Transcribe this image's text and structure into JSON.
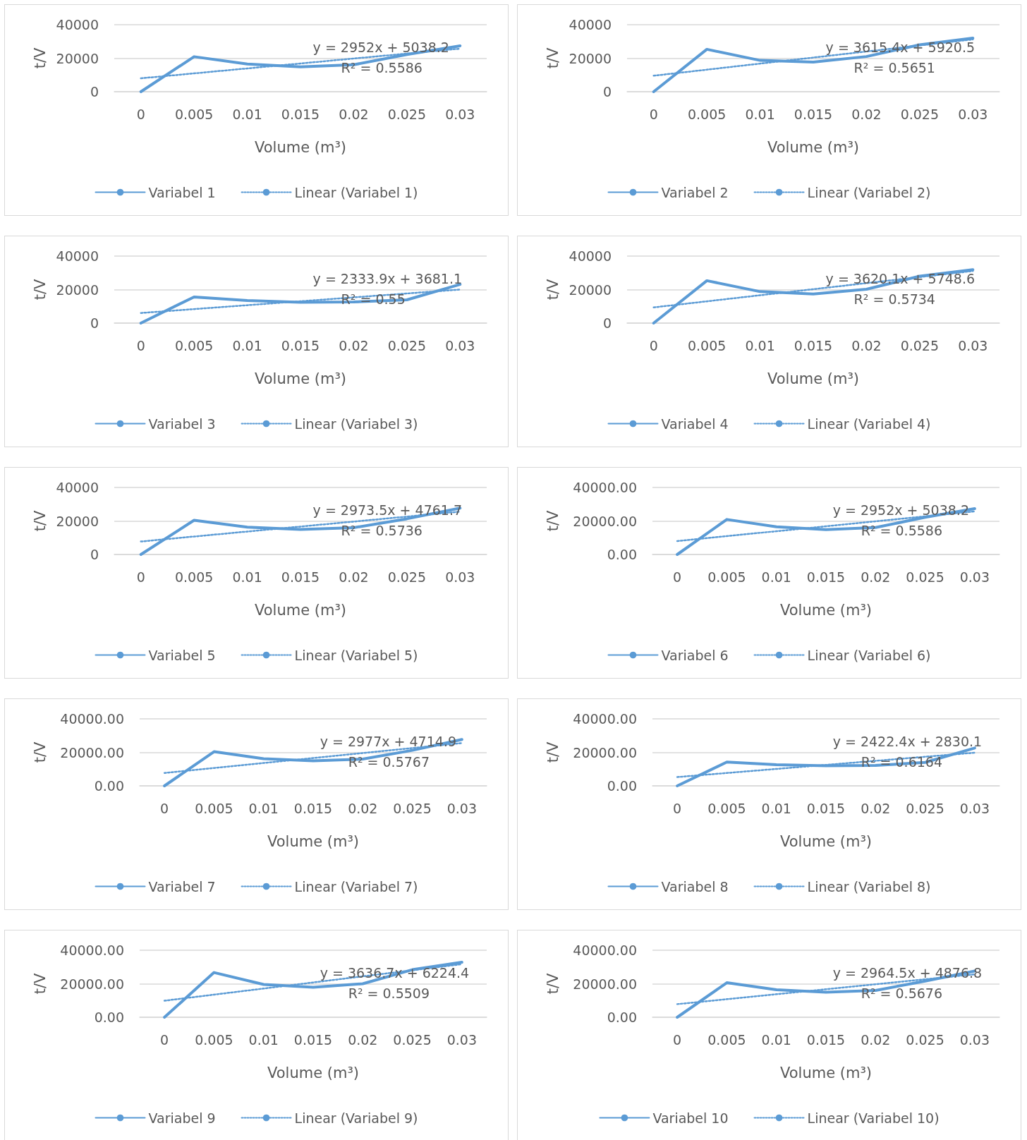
{
  "chart_data": [
    {
      "type": "line",
      "categories": [
        "0",
        "0.005",
        "0.01",
        "0.015",
        "0.02",
        "0.025",
        "0.03"
      ],
      "xlabel": "Volume (m³)",
      "ylabel": "t/V",
      "ylim": [
        0,
        40000
      ],
      "yticks": [
        0,
        20000,
        40000
      ],
      "grid": "y",
      "legend": "bottom",
      "marker": "none",
      "annotations": [
        "y = 2952x + 5038.2",
        "R² = 0.5586"
      ],
      "series": [
        {
          "name": "Variabel 1",
          "color": "#5b9bd5",
          "line_style": "solid",
          "values": [
            0,
            20900,
            16500,
            14800,
            16100,
            22200,
            27400
          ]
        },
        {
          "name": "Linear (Variabel 1)",
          "color": "#5b9bd5",
          "line_style": "dotted",
          "values": [
            7990,
            10940,
            13890,
            16850,
            19800,
            22750,
            25700
          ]
        }
      ]
    },
    {
      "type": "line",
      "categories": [
        "0",
        "0.005",
        "0.01",
        "0.015",
        "0.02",
        "0.025",
        "0.03"
      ],
      "xlabel": "Volume (m³)",
      "ylabel": "t/V",
      "ylim": [
        0,
        40000
      ],
      "yticks": [
        0,
        20000,
        40000
      ],
      "grid": "y",
      "legend": "bottom",
      "marker": "none",
      "annotations": [
        "y = 3615.4x + 5920.5",
        "R² = 0.5651"
      ],
      "series": [
        {
          "name": "Variabel 2",
          "color": "#5b9bd5",
          "line_style": "solid",
          "values": [
            0,
            25300,
            18700,
            17700,
            21000,
            28000,
            32000
          ]
        },
        {
          "name": "Linear (Variabel 2)",
          "color": "#5b9bd5",
          "line_style": "dotted",
          "values": [
            9540,
            13150,
            16770,
            20380,
            24000,
            27610,
            31230
          ]
        }
      ]
    },
    {
      "type": "line",
      "categories": [
        "0",
        "0.005",
        "0.01",
        "0.015",
        "0.02",
        "0.025",
        "0.03"
      ],
      "xlabel": "Volume (m³)",
      "ylabel": "t/V",
      "ylim": [
        0,
        40000
      ],
      "yticks": [
        0,
        20000,
        40000
      ],
      "grid": "y",
      "legend": "bottom",
      "marker": "none",
      "annotations": [
        "y = 2333.9x + 3681.1",
        "R² = 0.55"
      ],
      "series": [
        {
          "name": "Variabel 3",
          "color": "#5b9bd5",
          "line_style": "solid",
          "values": [
            0,
            15600,
            13500,
            12400,
            12600,
            13900,
            23100
          ]
        },
        {
          "name": "Linear (Variabel 3)",
          "color": "#5b9bd5",
          "line_style": "dotted",
          "values": [
            6020,
            8350,
            10680,
            13020,
            15350,
            17680,
            20020
          ]
        }
      ]
    },
    {
      "type": "line",
      "categories": [
        "0",
        "0.005",
        "0.01",
        "0.015",
        "0.02",
        "0.025",
        "0.03"
      ],
      "xlabel": "Volume (m³)",
      "ylabel": "t/V",
      "ylim": [
        0,
        40000
      ],
      "yticks": [
        0,
        20000,
        40000
      ],
      "grid": "y",
      "legend": "bottom",
      "marker": "none",
      "annotations": [
        "y = 3620.1x + 5748.6",
        "R² = 0.5734"
      ],
      "series": [
        {
          "name": "Variabel 4",
          "color": "#5b9bd5",
          "line_style": "solid",
          "values": [
            0,
            25300,
            18800,
            17400,
            20200,
            28000,
            31900
          ]
        },
        {
          "name": "Linear (Variabel 4)",
          "color": "#5b9bd5",
          "line_style": "dotted",
          "values": [
            9370,
            12990,
            16610,
            20230,
            23850,
            27470,
            31090
          ]
        }
      ]
    },
    {
      "type": "line",
      "categories": [
        "0",
        "0.005",
        "0.01",
        "0.015",
        "0.02",
        "0.025",
        "0.03"
      ],
      "xlabel": "Volume (m³)",
      "ylabel": "t/V",
      "ylim": [
        0,
        40000
      ],
      "yticks": [
        0,
        20000,
        40000
      ],
      "grid": "y",
      "legend": "bottom",
      "marker": "none",
      "annotations": [
        "y = 2973.5x + 4761.7",
        "R² = 0.5736"
      ],
      "series": [
        {
          "name": "Variabel 5",
          "color": "#5b9bd5",
          "line_style": "solid",
          "values": [
            0,
            20400,
            16300,
            14900,
            16000,
            21300,
            27700
          ]
        },
        {
          "name": "Linear (Variabel 5)",
          "color": "#5b9bd5",
          "line_style": "dotted",
          "values": [
            7740,
            10710,
            13680,
            16660,
            19630,
            22600,
            25580
          ]
        }
      ]
    },
    {
      "type": "line",
      "categories": [
        "0",
        "0.005",
        "0.01",
        "0.015",
        "0.02",
        "0.025",
        "0.03"
      ],
      "xlabel": "Volume (m³)",
      "ylabel": "t/V",
      "ylim": [
        0,
        40000
      ],
      "yticks": [
        {
          "value": 0,
          "label": "0.00"
        },
        {
          "value": 20000,
          "label": "20000.00"
        },
        {
          "value": 40000,
          "label": "40000.00"
        }
      ],
      "grid": "y",
      "legend": "bottom",
      "marker": "none",
      "annotations": [
        "y = 2952x + 5038.2",
        "R² = 0.5586"
      ],
      "series": [
        {
          "name": "Variabel 6",
          "color": "#5b9bd5",
          "line_style": "solid",
          "values": [
            0,
            20900,
            16500,
            14800,
            16100,
            22200,
            27400
          ]
        },
        {
          "name": "Linear (Variabel 6)",
          "color": "#5b9bd5",
          "line_style": "dotted",
          "values": [
            7990,
            10940,
            13890,
            16850,
            19800,
            22750,
            25700
          ]
        }
      ]
    },
    {
      "type": "line",
      "categories": [
        "0",
        "0.005",
        "0.01",
        "0.015",
        "0.02",
        "0.025",
        "0.03"
      ],
      "xlabel": "Volume (m³)",
      "ylabel": "t/V",
      "ylim": [
        0,
        40000
      ],
      "yticks": [
        {
          "value": 0,
          "label": "0.00"
        },
        {
          "value": 20000,
          "label": "20000.00"
        },
        {
          "value": 40000,
          "label": "40000.00"
        }
      ],
      "grid": "y",
      "legend": "bottom",
      "marker": "none",
      "annotations": [
        "y = 2977x + 4714.9",
        "R² = 0.5767"
      ],
      "series": [
        {
          "name": "Variabel 7",
          "color": "#5b9bd5",
          "line_style": "solid",
          "values": [
            0,
            20400,
            16200,
            14900,
            16000,
            21200,
            27700
          ]
        },
        {
          "name": "Linear (Variabel 7)",
          "color": "#5b9bd5",
          "line_style": "dotted",
          "values": [
            7690,
            10670,
            13650,
            16620,
            19600,
            22580,
            25550
          ]
        }
      ]
    },
    {
      "type": "line",
      "categories": [
        "0",
        "0.005",
        "0.01",
        "0.015",
        "0.02",
        "0.025",
        "0.03"
      ],
      "xlabel": "Volume (m³)",
      "ylabel": "t/V",
      "ylim": [
        0,
        40000
      ],
      "yticks": [
        {
          "value": 0,
          "label": "0.00"
        },
        {
          "value": 20000,
          "label": "20000.00"
        },
        {
          "value": 40000,
          "label": "40000.00"
        }
      ],
      "grid": "y",
      "legend": "bottom",
      "marker": "none",
      "annotations": [
        "y = 2422.4x + 2830.1",
        "R² = 0.6164"
      ],
      "series": [
        {
          "name": "Variabel 8",
          "color": "#5b9bd5",
          "line_style": "solid",
          "values": [
            0,
            14200,
            12600,
            12000,
            12200,
            14000,
            22600
          ]
        },
        {
          "name": "Linear (Variabel 8)",
          "color": "#5b9bd5",
          "line_style": "dotted",
          "values": [
            5250,
            7680,
            10100,
            12520,
            14940,
            17360,
            19790
          ]
        }
      ]
    },
    {
      "type": "line",
      "categories": [
        "0",
        "0.005",
        "0.01",
        "0.015",
        "0.02",
        "0.025",
        "0.03"
      ],
      "xlabel": "Volume (m³)",
      "ylabel": "t/V",
      "ylim": [
        0,
        40000
      ],
      "yticks": [
        {
          "value": 0,
          "label": "0.00"
        },
        {
          "value": 20000,
          "label": "20000.00"
        },
        {
          "value": 40000,
          "label": "40000.00"
        }
      ],
      "grid": "y",
      "legend": "bottom",
      "marker": "none",
      "annotations": [
        "y = 3636.7x + 6224.4",
        "R² = 0.5509"
      ],
      "series": [
        {
          "name": "Variabel 9",
          "color": "#5b9bd5",
          "line_style": "solid",
          "values": [
            0,
            26700,
            19600,
            17900,
            20000,
            28400,
            32800
          ]
        },
        {
          "name": "Linear (Variabel 9)",
          "color": "#5b9bd5",
          "line_style": "dotted",
          "values": [
            9860,
            13500,
            17130,
            20770,
            24410,
            28040,
            31680
          ]
        }
      ]
    },
    {
      "type": "line",
      "categories": [
        "0",
        "0.005",
        "0.01",
        "0.015",
        "0.02",
        "0.025",
        "0.03"
      ],
      "xlabel": "Volume (m³)",
      "ylabel": "t/V",
      "ylim": [
        0,
        40000
      ],
      "yticks": [
        {
          "value": 0,
          "label": "0.00"
        },
        {
          "value": 20000,
          "label": "20000.00"
        },
        {
          "value": 40000,
          "label": "40000.00"
        }
      ],
      "grid": "y",
      "legend": "bottom",
      "marker": "none",
      "annotations": [
        "y = 2964.5x + 4876.8",
        "R² = 0.5676"
      ],
      "series": [
        {
          "name": "Variabel 10",
          "color": "#5b9bd5",
          "line_style": "solid",
          "values": [
            0,
            20600,
            16400,
            14900,
            16000,
            21600,
            27600
          ]
        },
        {
          "name": "Linear (Variabel 10)",
          "color": "#5b9bd5",
          "line_style": "dotted",
          "values": [
            7840,
            10810,
            13770,
            16740,
            19700,
            22660,
            25630
          ]
        }
      ]
    }
  ]
}
